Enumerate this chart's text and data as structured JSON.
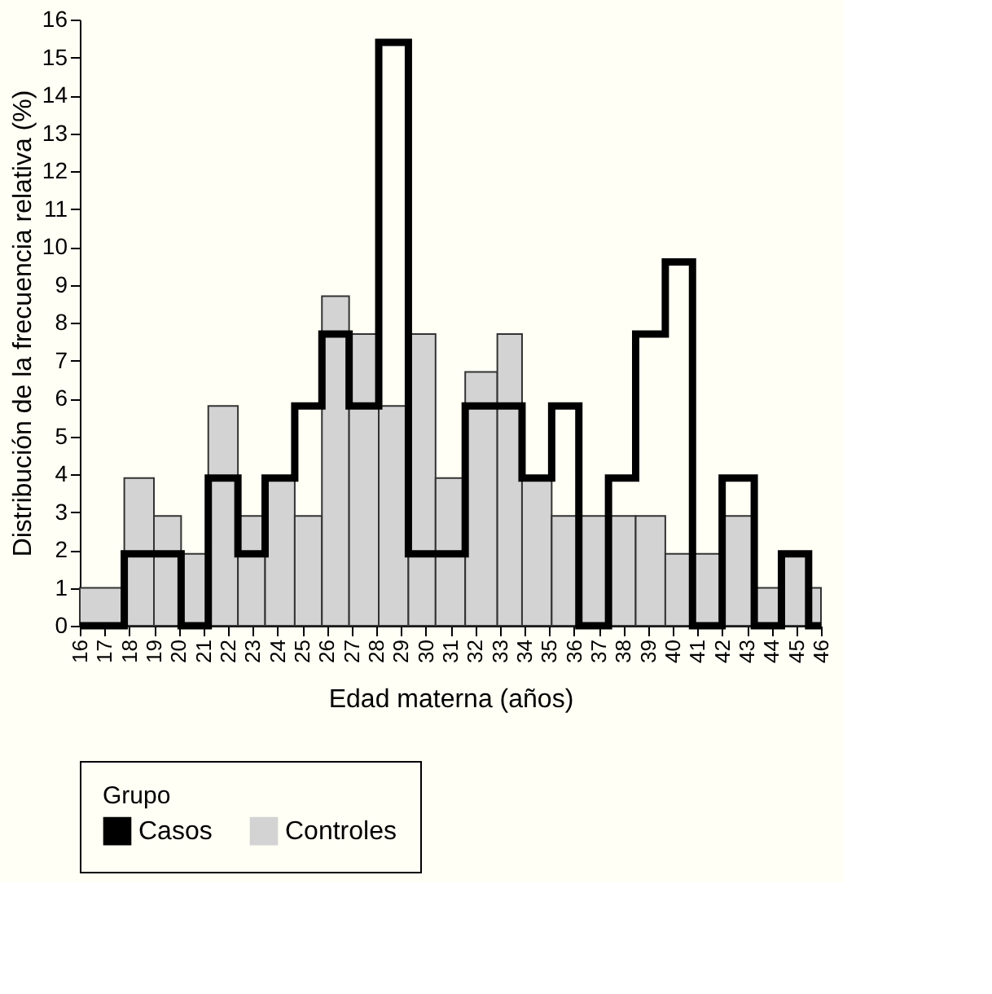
{
  "chart_data": {
    "type": "histogram",
    "xlabel": "Edad materna (años)",
    "ylabel": "Distribución de la frecuencia relativa (%)",
    "legend_title": "Grupo",
    "bins": [
      16,
      17.8,
      19,
      20.1,
      21.2,
      22.4,
      23.5,
      24.7,
      25.8,
      26.9,
      28.1,
      29.3,
      30.4,
      31.6,
      32.9,
      33.9,
      35.1,
      36.2,
      37.4,
      38.5,
      39.7,
      40.8,
      42,
      43.3,
      44.4,
      45.5,
      46
    ],
    "series": [
      {
        "name": "Casos",
        "type": "step",
        "color": "#000000",
        "x": [
          16,
          17.8,
          19,
          20.1,
          21.2,
          22.4,
          23.5,
          24.7,
          25.8,
          26.9,
          28.1,
          29.3,
          30.4,
          31.6,
          32.9,
          33.9,
          35.1,
          36.2,
          37.4,
          38.5,
          39.7,
          40.8,
          42,
          43.3,
          44.4,
          45.5,
          46
        ],
        "values": [
          0,
          1.9,
          1.9,
          0,
          3.9,
          1.9,
          3.9,
          5.8,
          7.7,
          5.8,
          15.4,
          1.9,
          1.9,
          5.8,
          5.8,
          3.9,
          5.8,
          0,
          3.9,
          7.7,
          9.6,
          0,
          3.9,
          0,
          1.9,
          0,
          0
        ]
      },
      {
        "name": "Controles",
        "color": "#d3d3d3",
        "values": [
          1,
          3.9,
          2.9,
          1.9,
          5.8,
          2.9,
          3.9,
          2.9,
          8.7,
          7.7,
          5.8,
          7.7,
          3.9,
          6.7,
          7.7,
          3.9,
          2.9,
          2.9,
          2.9,
          2.9,
          1.9,
          1.9,
          2.9,
          1.0,
          1.9,
          1.0
        ]
      }
    ],
    "xlim": [
      16,
      46
    ],
    "xticks": [
      16,
      17,
      18,
      19,
      20,
      21,
      22,
      23,
      24,
      25,
      26,
      27,
      28,
      29,
      30,
      31,
      32,
      33,
      34,
      35,
      36,
      37,
      38,
      39,
      40,
      41,
      42,
      43,
      44,
      45,
      46
    ],
    "ylim": [
      0,
      16
    ],
    "yticks": [
      0,
      1,
      2,
      3,
      4,
      5,
      6,
      7,
      8,
      9,
      10,
      11,
      12,
      13,
      14,
      15,
      16
    ],
    "grid": false,
    "legend": "bottom"
  }
}
